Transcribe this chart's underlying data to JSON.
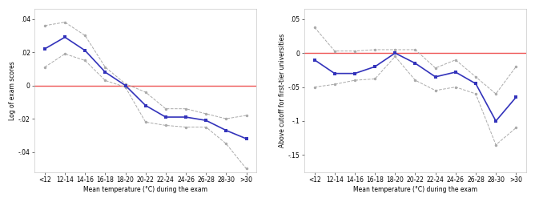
{
  "x_labels": [
    "<12",
    "12-14",
    "14-16",
    "16-18",
    "18-20",
    "20-22",
    "22-24",
    "24-26",
    "26-28",
    "28-30",
    ">30"
  ],
  "left": {
    "ylabel": "Log of exam scores",
    "ylim": [
      -0.052,
      0.046
    ],
    "yticks": [
      -0.04,
      -0.02,
      0,
      0.02,
      0.04
    ],
    "ytick_labels": [
      "-.04",
      "-.02",
      "0",
      ".02",
      ".04"
    ],
    "blue": [
      0.022,
      0.029,
      0.021,
      0.008,
      0.0,
      -0.012,
      -0.019,
      -0.019,
      -0.021,
      -0.027,
      -0.032
    ],
    "upper": [
      0.036,
      0.038,
      0.03,
      0.011,
      0.001,
      -0.004,
      -0.014,
      -0.014,
      -0.017,
      -0.02,
      -0.018
    ],
    "lower": [
      0.011,
      0.019,
      0.015,
      0.003,
      -0.001,
      -0.022,
      -0.024,
      -0.025,
      -0.025,
      -0.035,
      -0.05
    ]
  },
  "right": {
    "ylabel": "Above cutoff for first-tier universities",
    "ylim": [
      -0.175,
      0.065
    ],
    "yticks": [
      -0.15,
      -0.1,
      -0.05,
      0,
      0.05
    ],
    "ytick_labels": [
      "-.15",
      "-.1",
      "-.05",
      "0",
      ".05"
    ],
    "blue": [
      -0.01,
      -0.03,
      -0.03,
      -0.02,
      0.0,
      -0.015,
      -0.035,
      -0.028,
      -0.045,
      -0.1,
      -0.065
    ],
    "upper": [
      0.038,
      0.003,
      0.003,
      0.005,
      0.005,
      0.005,
      -0.022,
      -0.01,
      -0.035,
      -0.06,
      -0.02
    ],
    "lower": [
      -0.05,
      -0.046,
      -0.04,
      -0.038,
      -0.005,
      -0.04,
      -0.055,
      -0.05,
      -0.06,
      -0.135,
      -0.11
    ]
  },
  "xlabel": "Mean temperature (°C) during the exam",
  "blue_color": "#3333bb",
  "gray_color": "#aaaaaa",
  "red_color": "#ee5555",
  "background_color": "#ffffff"
}
